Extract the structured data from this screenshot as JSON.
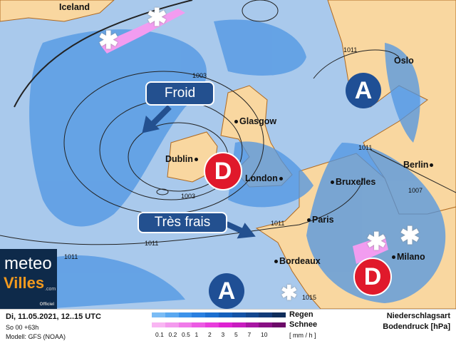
{
  "map": {
    "cities": [
      "Iceland",
      "Oslo",
      "Glasgow",
      "Dublin",
      "London",
      "Berlin",
      "Bruxelles",
      "Paris",
      "Bordeaux",
      "Milano"
    ],
    "isobars": [
      "1003",
      "1003",
      "1011",
      "1011",
      "1007",
      "1011",
      "1011",
      "1011",
      "1015"
    ],
    "pressure_centers": [
      {
        "type": "high",
        "letter": "A"
      },
      {
        "type": "low",
        "letter": "D"
      },
      {
        "type": "high",
        "letter": "A"
      },
      {
        "type": "low",
        "letter": "D"
      }
    ],
    "labels": {
      "cold": "Froid",
      "very_cool": "Très frais"
    },
    "colors": {
      "sea": "#a9c9ec",
      "land": "#f9d7a0",
      "rain": "#4f95e3",
      "snow": "#f29cf0",
      "high": "#1f4f95",
      "low": "#e0192b"
    }
  },
  "logo": {
    "line1": "meteo",
    "line2": "Villes",
    "suffix": ".com",
    "badge": "Officiel"
  },
  "legend": {
    "datetime": "Di, 11.05.2021, 12..15 UTC",
    "run": "So 00 +63h",
    "model": "Modell: GFS (NOAA)",
    "rain_label": "Regen",
    "snow_label": "Schnee",
    "unit": "[ mm / h ]",
    "ticks": [
      "0.1",
      "0.2",
      "0.5",
      "1",
      "2",
      "3",
      "5",
      "7",
      "10"
    ],
    "rain_colors": [
      "#7bbcf5",
      "#5aa8f0",
      "#3d93ea",
      "#2a80e0",
      "#1c6fd0",
      "#1560bc",
      "#1453a6",
      "#13478f",
      "#123b78",
      "#0f2d5a"
    ],
    "snow_colors": [
      "#f9b6f3",
      "#f49aee",
      "#f07ae9",
      "#ec5be3",
      "#e83ddc",
      "#de22d2",
      "#c81dbf",
      "#a816a3",
      "#891084",
      "#6c0a68"
    ],
    "title1": "Niederschlagsart",
    "title2": "Bodendruck [hPa]"
  }
}
